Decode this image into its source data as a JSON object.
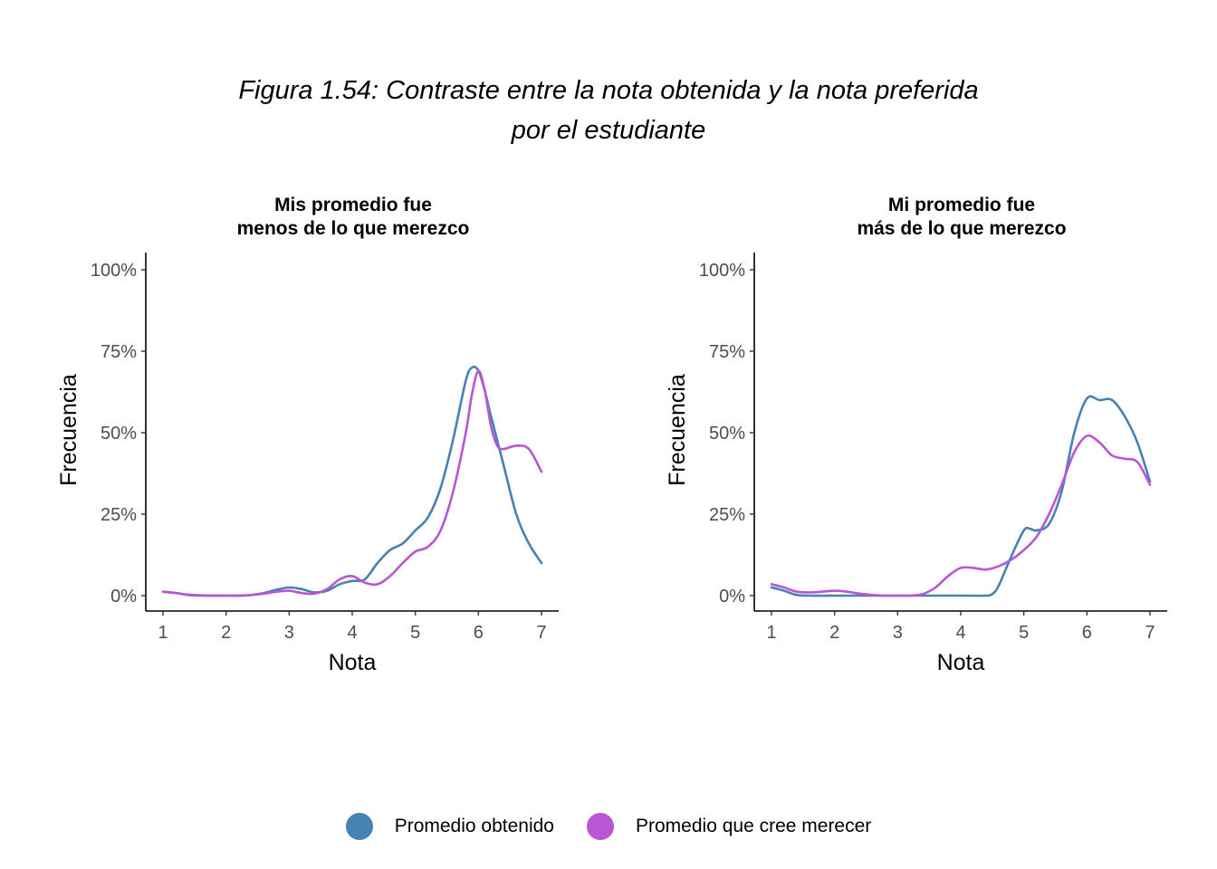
{
  "figure": {
    "title_line1": "Figura 1.54: Contraste entre la nota obtenida y la nota preferida",
    "title_line2": "por el estudiante"
  },
  "legend": {
    "placement": "bottom",
    "items": [
      {
        "label": "Promedio obtenido",
        "color": "#4682B4"
      },
      {
        "label": "Promedio que cree merecer",
        "color": "#BA55D3"
      }
    ]
  },
  "chart_data": [
    {
      "type": "line",
      "title_line1": "Mis promedio fue",
      "title_line2": "menos de lo que merezco",
      "xlabel": "Nota",
      "ylabel": "Frecuencia",
      "xlim": [
        1,
        7
      ],
      "ylim": [
        0,
        1
      ],
      "xticks": [
        "1",
        "2",
        "3",
        "4",
        "5",
        "6",
        "7"
      ],
      "yticks": [
        "0%",
        "25%",
        "50%",
        "75%",
        "100%"
      ],
      "grid": false,
      "series": [
        {
          "name": "Promedio obtenido",
          "color": "#4682B4",
          "x": [
            1.0,
            1.2,
            1.4,
            1.6,
            1.8,
            2.0,
            2.2,
            2.4,
            2.6,
            2.8,
            3.0,
            3.2,
            3.4,
            3.6,
            3.8,
            4.0,
            4.2,
            4.4,
            4.6,
            4.8,
            5.0,
            5.2,
            5.4,
            5.6,
            5.8,
            5.9,
            6.0,
            6.1,
            6.2,
            6.4,
            6.6,
            6.8,
            7.0
          ],
          "values": [
            0.012,
            0.008,
            0.003,
            0.001,
            0.0,
            0.0,
            0.0,
            0.002,
            0.008,
            0.018,
            0.025,
            0.02,
            0.01,
            0.015,
            0.035,
            0.045,
            0.05,
            0.1,
            0.14,
            0.16,
            0.2,
            0.24,
            0.33,
            0.48,
            0.66,
            0.7,
            0.69,
            0.63,
            0.55,
            0.4,
            0.25,
            0.16,
            0.1
          ]
        },
        {
          "name": "Promedio que cree merecer",
          "color": "#BA55D3",
          "x": [
            1.0,
            1.2,
            1.4,
            1.6,
            1.8,
            2.0,
            2.2,
            2.4,
            2.6,
            2.8,
            3.0,
            3.2,
            3.4,
            3.6,
            3.8,
            4.0,
            4.2,
            4.4,
            4.6,
            4.8,
            5.0,
            5.2,
            5.4,
            5.6,
            5.8,
            5.9,
            6.0,
            6.1,
            6.2,
            6.3,
            6.4,
            6.6,
            6.8,
            7.0
          ],
          "values": [
            0.012,
            0.008,
            0.002,
            0.0,
            0.0,
            0.0,
            0.0,
            0.002,
            0.006,
            0.012,
            0.015,
            0.008,
            0.006,
            0.02,
            0.05,
            0.06,
            0.04,
            0.035,
            0.06,
            0.1,
            0.135,
            0.15,
            0.2,
            0.32,
            0.5,
            0.62,
            0.69,
            0.63,
            0.52,
            0.46,
            0.45,
            0.46,
            0.45,
            0.38
          ]
        }
      ]
    },
    {
      "type": "line",
      "title_line1": "Mi promedio fue",
      "title_line2": "más de lo que merezco",
      "xlabel": "Nota",
      "ylabel": "Frecuencia",
      "xlim": [
        1,
        7
      ],
      "ylim": [
        0,
        1
      ],
      "xticks": [
        "1",
        "2",
        "3",
        "4",
        "5",
        "6",
        "7"
      ],
      "yticks": [
        "0%",
        "25%",
        "50%",
        "75%",
        "100%"
      ],
      "grid": false,
      "series": [
        {
          "name": "Promedio obtenido",
          "color": "#4682B4",
          "x": [
            1.0,
            1.2,
            1.4,
            1.6,
            2.0,
            2.5,
            3.0,
            3.5,
            4.0,
            4.4,
            4.5,
            4.6,
            4.8,
            5.0,
            5.1,
            5.2,
            5.4,
            5.6,
            5.8,
            6.0,
            6.2,
            6.4,
            6.6,
            6.8,
            7.0
          ],
          "values": [
            0.025,
            0.015,
            0.002,
            0.0,
            0.0,
            0.0,
            0.0,
            0.0,
            0.0,
            0.0,
            0.005,
            0.03,
            0.12,
            0.2,
            0.205,
            0.2,
            0.22,
            0.32,
            0.5,
            0.605,
            0.6,
            0.6,
            0.55,
            0.47,
            0.35
          ]
        },
        {
          "name": "Promedio que cree merecer",
          "color": "#BA55D3",
          "x": [
            1.0,
            1.2,
            1.4,
            1.6,
            1.8,
            2.0,
            2.2,
            2.4,
            2.6,
            2.8,
            3.0,
            3.2,
            3.4,
            3.6,
            3.8,
            4.0,
            4.2,
            4.4,
            4.6,
            4.8,
            5.0,
            5.2,
            5.4,
            5.6,
            5.8,
            6.0,
            6.2,
            6.4,
            6.6,
            6.8,
            7.0
          ],
          "values": [
            0.035,
            0.025,
            0.012,
            0.01,
            0.012,
            0.015,
            0.012,
            0.006,
            0.002,
            0.0,
            0.0,
            0.0,
            0.005,
            0.025,
            0.06,
            0.085,
            0.085,
            0.08,
            0.09,
            0.11,
            0.14,
            0.18,
            0.25,
            0.34,
            0.44,
            0.49,
            0.47,
            0.43,
            0.42,
            0.41,
            0.34
          ]
        }
      ]
    }
  ]
}
